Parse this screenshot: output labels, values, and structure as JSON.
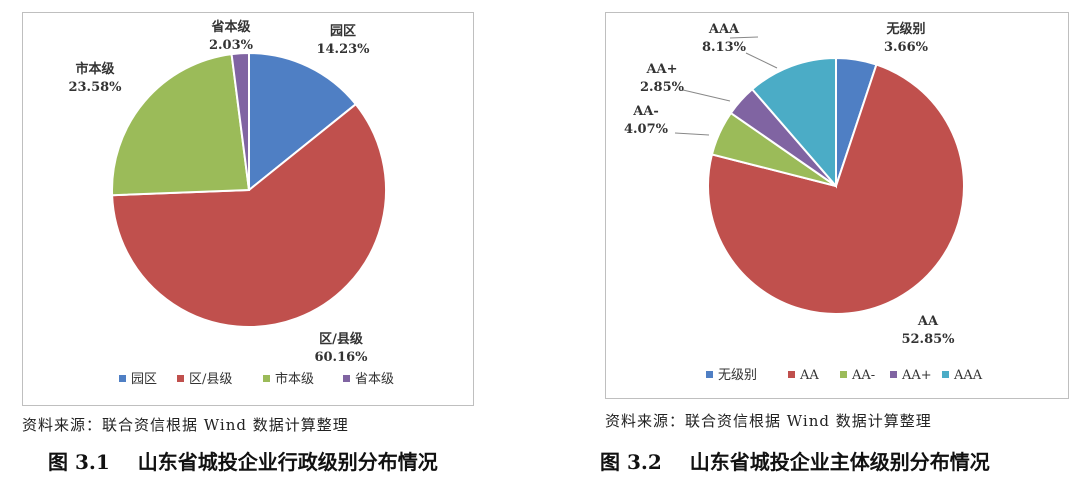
{
  "chart_data": [
    {
      "type": "pie",
      "categories": [
        "园区",
        "区/县级",
        "市本级",
        "省本级"
      ],
      "values": [
        14.23,
        60.16,
        23.58,
        2.03
      ],
      "value_labels": [
        "14.23%",
        "60.16%",
        "23.58%",
        "2.03%"
      ],
      "colors": [
        "#4f7fc4",
        "#c0504d",
        "#9bbb59",
        "#8064a2"
      ],
      "legend": "bottom",
      "source": "资料来源：联合资信根据 Wind 数据计算整理",
      "caption_number": "图 3.1",
      "caption_text": "山东省城投企业行政级别分布情况"
    },
    {
      "type": "pie",
      "categories": [
        "无级别",
        "AA",
        "AA-",
        "AA+",
        "AAA"
      ],
      "values": [
        3.66,
        52.85,
        4.07,
        2.85,
        8.13
      ],
      "value_labels": [
        "3.66%",
        "52.85%",
        "4.07%",
        "2.85%",
        "8.13%"
      ],
      "colors": [
        "#4f7fc4",
        "#c0504d",
        "#9bbb59",
        "#8064a2",
        "#4bacc6"
      ],
      "legend": "bottom",
      "source": "资料来源：联合资信根据 Wind 数据计算整理",
      "caption_number": "图 3.2",
      "caption_text": "山东省城投企业主体级别分布情况"
    }
  ]
}
